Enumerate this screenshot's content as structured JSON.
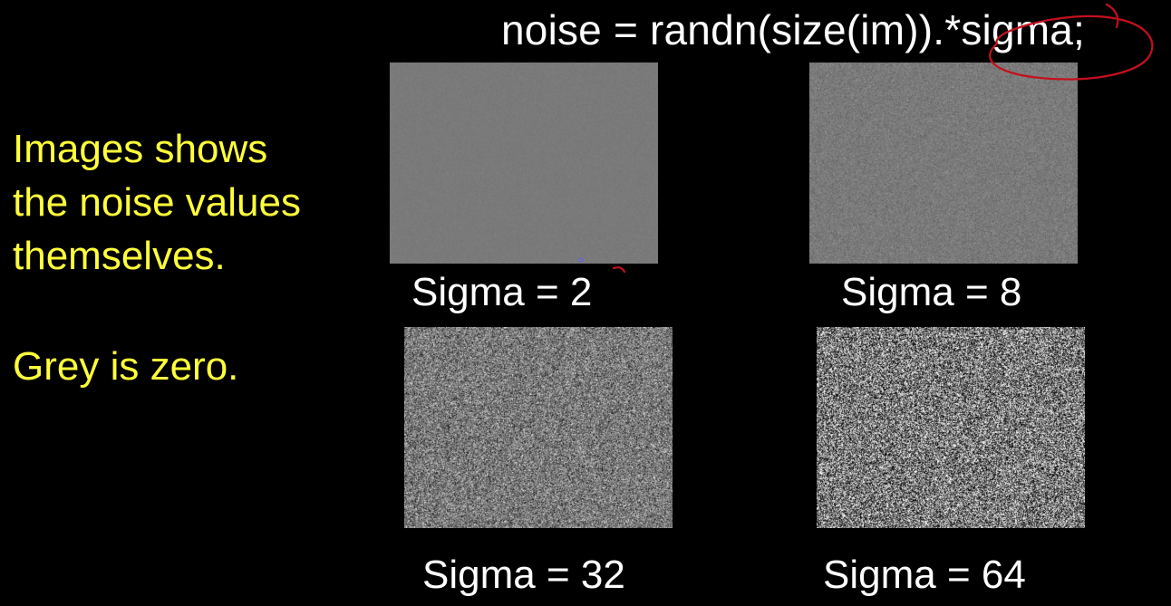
{
  "code_line": "noise = randn(size(im)).*sigma;",
  "notes": {
    "description_lines": [
      "Images shows",
      "the noise values",
      "themselves."
    ],
    "zero_note": "Grey is zero."
  },
  "panels": [
    {
      "sigma": 2,
      "caption": "Sigma = 2"
    },
    {
      "sigma": 8,
      "caption": "Sigma = 8"
    },
    {
      "sigma": 32,
      "caption": "Sigma = 32"
    },
    {
      "sigma": 64,
      "caption": "Sigma = 64"
    }
  ],
  "colors": {
    "background": "#000000",
    "code_text": "#ffffff",
    "note_text": "#ffff3a",
    "zero_grey": "#808080",
    "annotation_ink": "#c4101d"
  }
}
